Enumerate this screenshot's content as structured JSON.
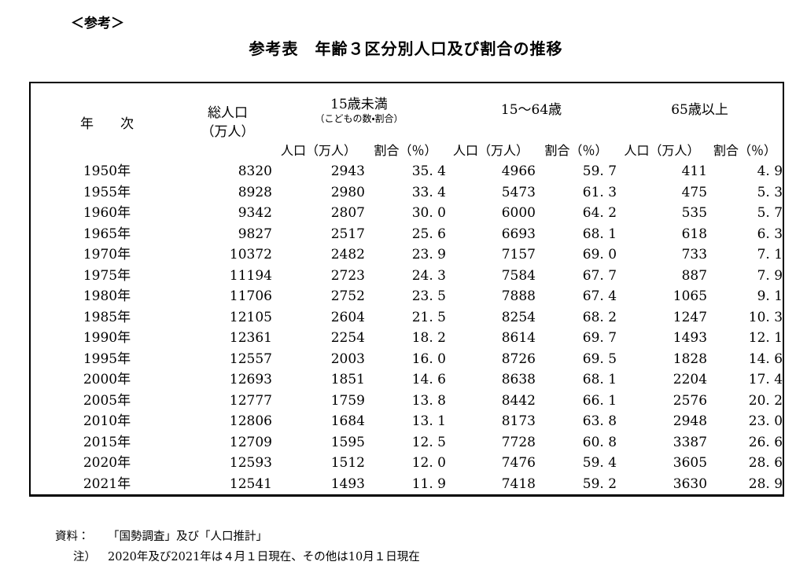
{
  "page": {
    "kicker": "＜参考＞",
    "title": "参考表　年齢３区分別人口及び割合の推移"
  },
  "table": {
    "header": {
      "year": "年　　次",
      "total": "総人口\n（万人）",
      "groups": [
        {
          "label": "15歳未満",
          "sublabel": "（こどもの数・割合）"
        },
        {
          "label": "15～64歳",
          "sublabel": ""
        },
        {
          "label": "65歳以上",
          "sublabel": ""
        }
      ],
      "sub_population": "人口（万人）",
      "sub_ratio": "割合（％）"
    },
    "rows": [
      {
        "year": "1950年",
        "total": "8320",
        "u15_pop": "2943",
        "u15_pct": "35. 4",
        "w_pop": "4966",
        "w_pct": "59. 7",
        "o65_pop": "411",
        "o65_pct": "4. 9"
      },
      {
        "year": "1955年",
        "total": "8928",
        "u15_pop": "2980",
        "u15_pct": "33. 4",
        "w_pop": "5473",
        "w_pct": "61. 3",
        "o65_pop": "475",
        "o65_pct": "5. 3"
      },
      {
        "year": "1960年",
        "total": "9342",
        "u15_pop": "2807",
        "u15_pct": "30. 0",
        "w_pop": "6000",
        "w_pct": "64. 2",
        "o65_pop": "535",
        "o65_pct": "5. 7"
      },
      {
        "year": "1965年",
        "total": "9827",
        "u15_pop": "2517",
        "u15_pct": "25. 6",
        "w_pop": "6693",
        "w_pct": "68. 1",
        "o65_pop": "618",
        "o65_pct": "6. 3"
      },
      {
        "year": "1970年",
        "total": "10372",
        "u15_pop": "2482",
        "u15_pct": "23. 9",
        "w_pop": "7157",
        "w_pct": "69. 0",
        "o65_pop": "733",
        "o65_pct": "7. 1"
      },
      {
        "year": "1975年",
        "total": "11194",
        "u15_pop": "2723",
        "u15_pct": "24. 3",
        "w_pop": "7584",
        "w_pct": "67. 7",
        "o65_pop": "887",
        "o65_pct": "7. 9"
      },
      {
        "year": "1980年",
        "total": "11706",
        "u15_pop": "2752",
        "u15_pct": "23. 5",
        "w_pop": "7888",
        "w_pct": "67. 4",
        "o65_pop": "1065",
        "o65_pct": "9. 1"
      },
      {
        "year": "1985年",
        "total": "12105",
        "u15_pop": "2604",
        "u15_pct": "21. 5",
        "w_pop": "8254",
        "w_pct": "68. 2",
        "o65_pop": "1247",
        "o65_pct": "10. 3"
      },
      {
        "year": "1990年",
        "total": "12361",
        "u15_pop": "2254",
        "u15_pct": "18. 2",
        "w_pop": "8614",
        "w_pct": "69. 7",
        "o65_pop": "1493",
        "o65_pct": "12. 1"
      },
      {
        "year": "1995年",
        "total": "12557",
        "u15_pop": "2003",
        "u15_pct": "16. 0",
        "w_pop": "8726",
        "w_pct": "69. 5",
        "o65_pop": "1828",
        "o65_pct": "14. 6"
      },
      {
        "year": "2000年",
        "total": "12693",
        "u15_pop": "1851",
        "u15_pct": "14. 6",
        "w_pop": "8638",
        "w_pct": "68. 1",
        "o65_pop": "2204",
        "o65_pct": "17. 4"
      },
      {
        "year": "2005年",
        "total": "12777",
        "u15_pop": "1759",
        "u15_pct": "13. 8",
        "w_pop": "8442",
        "w_pct": "66. 1",
        "o65_pop": "2576",
        "o65_pct": "20. 2"
      },
      {
        "year": "2010年",
        "total": "12806",
        "u15_pop": "1684",
        "u15_pct": "13. 1",
        "w_pop": "8173",
        "w_pct": "63. 8",
        "o65_pop": "2948",
        "o65_pct": "23. 0"
      },
      {
        "year": "2015年",
        "total": "12709",
        "u15_pop": "1595",
        "u15_pct": "12. 5",
        "w_pop": "7728",
        "w_pct": "60. 8",
        "o65_pop": "3387",
        "o65_pct": "26. 6"
      },
      {
        "year": "2020年",
        "total": "12593",
        "u15_pop": "1512",
        "u15_pct": "12. 0",
        "w_pop": "7476",
        "w_pct": "59. 4",
        "o65_pop": "3605",
        "o65_pct": "28. 6"
      },
      {
        "year": "2021年",
        "total": "12541",
        "u15_pop": "1493",
        "u15_pct": "11. 9",
        "w_pop": "7418",
        "w_pct": "59. 2",
        "o65_pop": "3630",
        "o65_pct": "28. 9"
      }
    ]
  },
  "notes": {
    "source_label": "資料：",
    "source_text": "「国勢調査」及び「人口推計」",
    "note_label": "注）",
    "note_text": "2020年及び2021年は４月１日現在、その他は10月１日現在"
  }
}
